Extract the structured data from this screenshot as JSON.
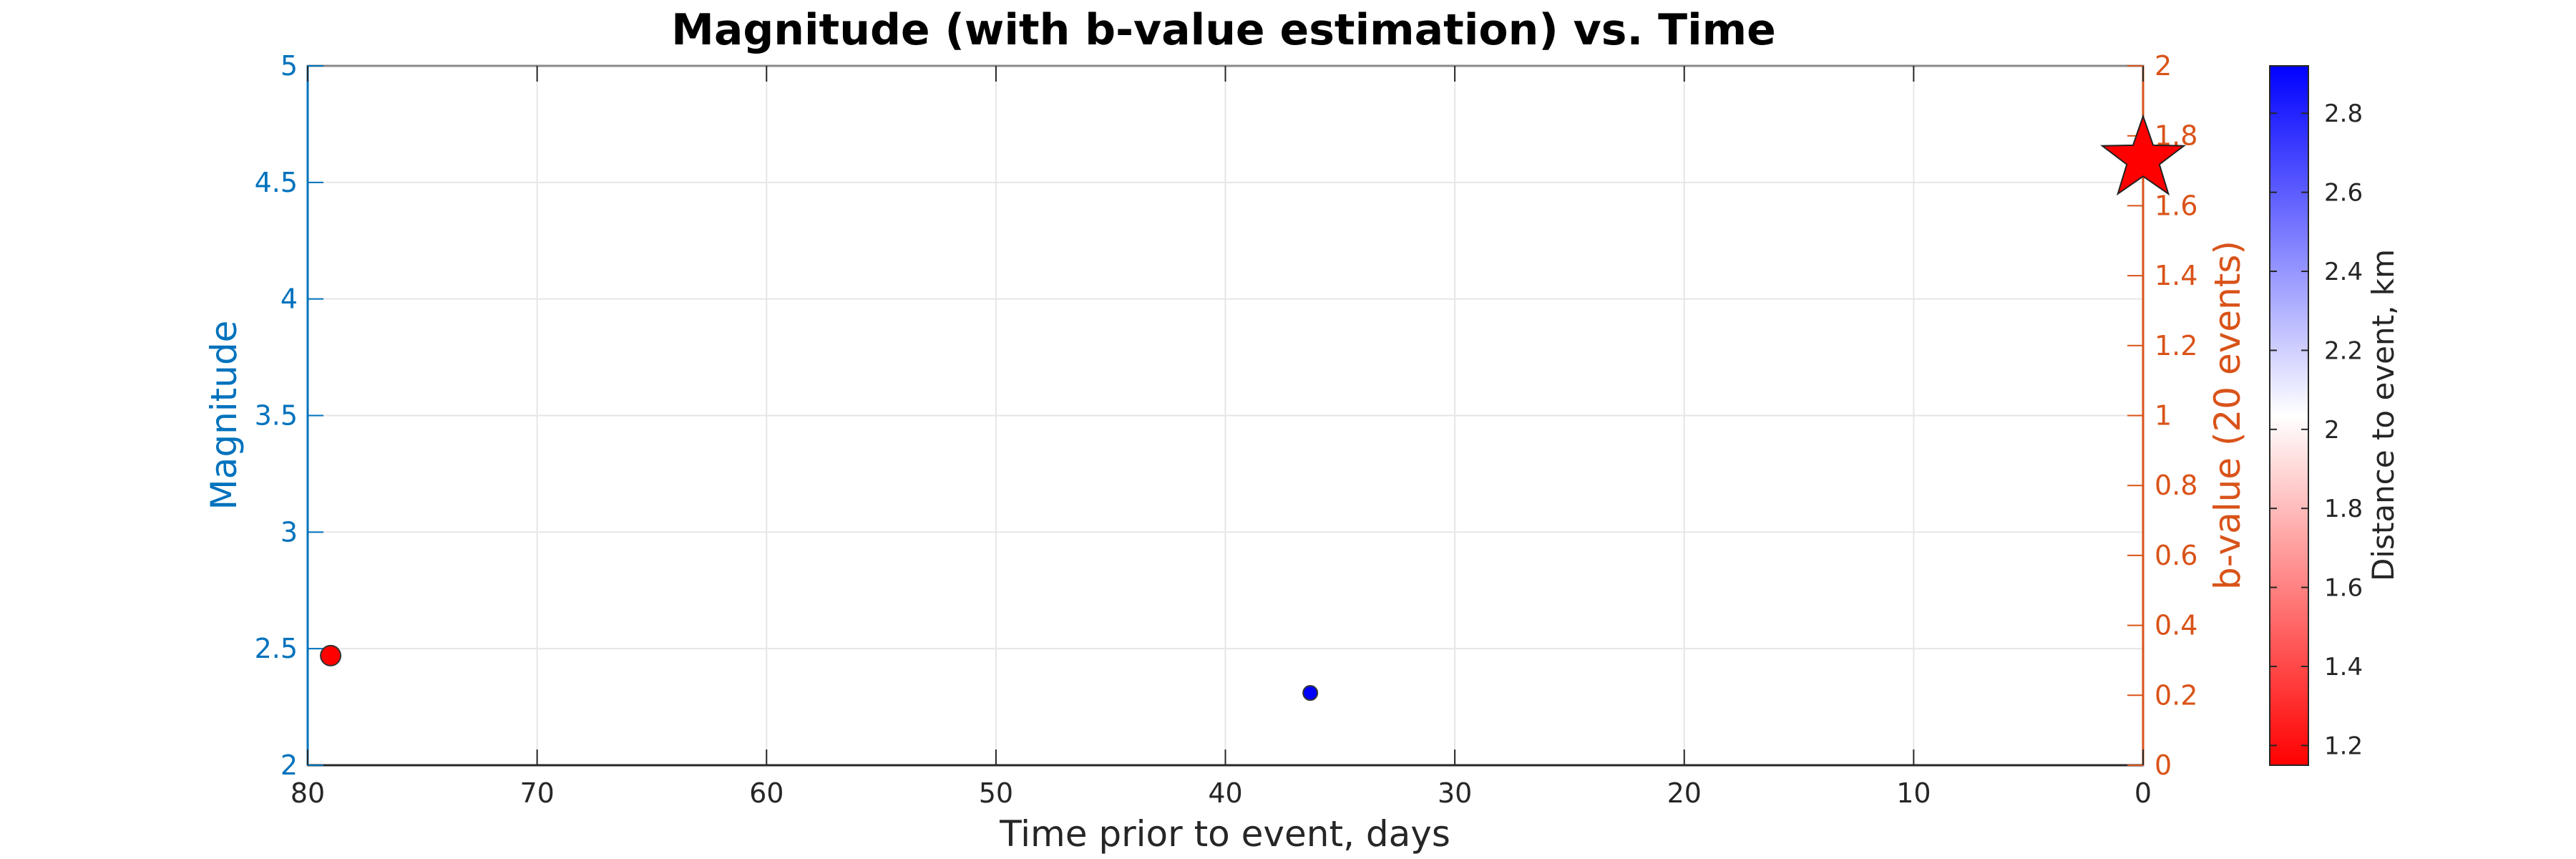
{
  "chart_data": {
    "type": "scatter",
    "title": "Magnitude (with b-value estimation) vs. Time",
    "xlabel": "Time prior to event, days",
    "ylabel_left": "Magnitude",
    "ylabel_right": "b-value (20 events)",
    "colorbar_label": "Distance to event, km",
    "xlim": [
      80,
      0
    ],
    "xticks": [
      80,
      70,
      60,
      50,
      40,
      30,
      20,
      10,
      0
    ],
    "ylim_left": [
      2,
      5
    ],
    "yticks_left": [
      2,
      2.5,
      3,
      3.5,
      4,
      4.5,
      5
    ],
    "ylim_right": [
      0,
      2
    ],
    "yticks_right": [
      0,
      0.2,
      0.4,
      0.6,
      0.8,
      1,
      1.2,
      1.4,
      1.6,
      1.8,
      2
    ],
    "colorbar_range": [
      1.15,
      2.92
    ],
    "colorbar_ticks": [
      1.2,
      1.4,
      1.6,
      1.8,
      2,
      2.2,
      2.4,
      2.6,
      2.8
    ],
    "colormap": [
      "#ff0000",
      "#ffffff",
      "#0000ff"
    ],
    "grid": true,
    "points": [
      {
        "x": 79,
        "y": 2.47,
        "distance_km": 1.15,
        "color": "#ff0000",
        "marker": "circle-large"
      },
      {
        "x": 36.3,
        "y": 2.31,
        "distance_km": 2.92,
        "color": "#0000ff",
        "marker": "circle-small"
      }
    ],
    "main_event": {
      "x": 0,
      "y": 4.6,
      "color": "#ff0000",
      "marker": "star"
    },
    "colors": {
      "left_axis": "#0072BD",
      "right_axis": "#D95319",
      "text": "#262626"
    }
  }
}
